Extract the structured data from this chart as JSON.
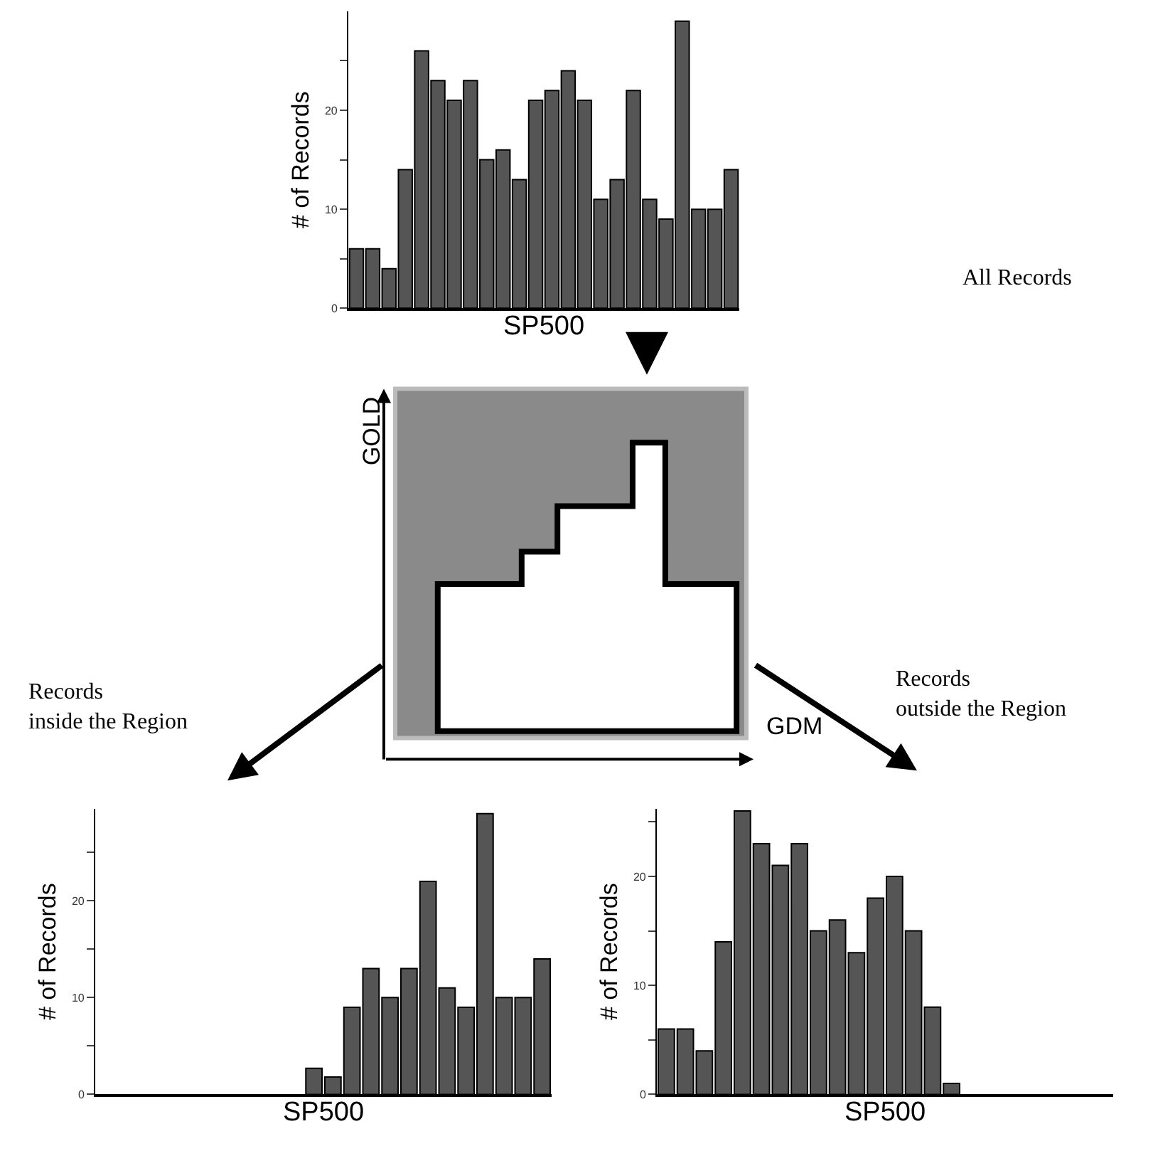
{
  "chart_data": [
    {
      "type": "bar",
      "xlabel": "SP500",
      "ylabel": "# of Records",
      "annotations": [
        "All Records"
      ],
      "categories": [
        null,
        null,
        null,
        null,
        null,
        null,
        null,
        null,
        null,
        null,
        null,
        null,
        null,
        null,
        null,
        null,
        null,
        null,
        null,
        null,
        null,
        null,
        null,
        null
      ],
      "values": [
        6,
        6,
        4,
        14,
        26,
        23,
        21,
        23,
        15,
        16,
        13,
        21,
        22,
        24,
        21,
        11,
        13,
        22,
        11,
        9,
        29,
        10,
        10,
        14
      ],
      "color": "#555555",
      "ylim": [
        0,
        30
      ],
      "yticks": [
        0,
        {
          "value": 5,
          "label": null
        },
        10,
        {
          "value": 15,
          "label": null
        },
        20,
        {
          "value": 25,
          "label": null
        }
      ],
      "tick_labels": "y",
      "grid": false
    },
    {
      "type": "other",
      "xlabel": "GDM",
      "ylabel": "GOLD"
    },
    {
      "type": "bar",
      "xlabel": "SP500",
      "ylabel": "# of Records",
      "annotations": [
        "Records\ninside the Region"
      ],
      "categories": [
        null,
        null,
        null,
        null,
        null,
        null,
        null,
        null,
        null,
        null,
        null,
        null,
        null,
        null,
        null,
        null,
        null,
        null,
        null,
        null,
        null,
        null,
        null,
        null
      ],
      "values": [
        null,
        null,
        null,
        null,
        null,
        null,
        null,
        null,
        null,
        null,
        null,
        2.7,
        1.8,
        9,
        13,
        10,
        13,
        22,
        11,
        9,
        29,
        10,
        10,
        14
      ],
      "color": "#555555",
      "ylim": [
        0,
        29.5
      ],
      "yticks": [
        0,
        {
          "value": 5,
          "label": null
        },
        10,
        {
          "value": 15,
          "label": null
        },
        20,
        {
          "value": 25,
          "label": null
        }
      ],
      "tick_labels": "y",
      "grid": false
    },
    {
      "type": "bar",
      "xlabel": "SP500",
      "ylabel": "# of Records",
      "annotations": [
        "Records\noutside the Region"
      ],
      "categories": [
        null,
        null,
        null,
        null,
        null,
        null,
        null,
        null,
        null,
        null,
        null,
        null,
        null,
        null,
        null,
        null,
        null,
        null,
        null,
        null,
        null,
        null,
        null,
        null
      ],
      "values": [
        6,
        6,
        4,
        14,
        26,
        23,
        21,
        23,
        15,
        16,
        13,
        18,
        20,
        15,
        8,
        1,
        null,
        null,
        null,
        null,
        null,
        null,
        null,
        null
      ],
      "color": "#555555",
      "ylim": [
        0,
        26.2
      ],
      "yticks": [
        0,
        {
          "value": 5,
          "label": null
        },
        10,
        {
          "value": 15,
          "label": null
        },
        20,
        {
          "value": 25,
          "label": null
        }
      ],
      "tick_labels": "y",
      "grid": false
    }
  ]
}
